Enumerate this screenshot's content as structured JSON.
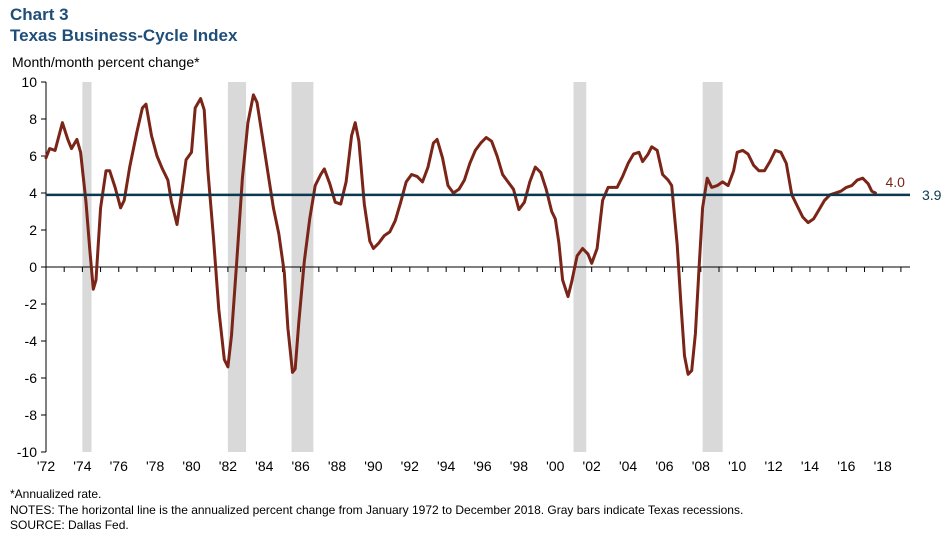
{
  "header": {
    "chart_number": "Chart 3",
    "title": "Texas Business-Cycle Index",
    "ylabel": "Month/month  percent change*"
  },
  "footnotes": {
    "annualized": "*Annualized rate.",
    "notes": "NOTES: The horizontal line is the annualized percent change from January 1972 to December 2018. Gray bars indicate Texas recessions.",
    "source": "SOURCE: Dallas Fed."
  },
  "colors": {
    "series": "#7b2418",
    "reference_line": "#0b3a4e",
    "recession_bars": "#d9d9d9",
    "title": "#1f4e79"
  },
  "chart_data": {
    "type": "line",
    "title": "Texas Business-Cycle Index",
    "ylabel": "Month/month  percent change*",
    "xlim": [
      1972,
      2019.5
    ],
    "ylim": [
      -10,
      10
    ],
    "yticks": [
      -10,
      -8,
      -6,
      -4,
      -2,
      0,
      2,
      4,
      6,
      8,
      10
    ],
    "xticks": [
      {
        "x": 1972,
        "label": "'72"
      },
      {
        "x": 1974,
        "label": "'74"
      },
      {
        "x": 1976,
        "label": "'76"
      },
      {
        "x": 1978,
        "label": "'78"
      },
      {
        "x": 1980,
        "label": "'80"
      },
      {
        "x": 1982,
        "label": "'82"
      },
      {
        "x": 1984,
        "label": "'84"
      },
      {
        "x": 1986,
        "label": "'86"
      },
      {
        "x": 1988,
        "label": "'88"
      },
      {
        "x": 1990,
        "label": "'90"
      },
      {
        "x": 1992,
        "label": "'92"
      },
      {
        "x": 1994,
        "label": "'94"
      },
      {
        "x": 1996,
        "label": "'96"
      },
      {
        "x": 1998,
        "label": "'98"
      },
      {
        "x": 2000,
        "label": "'00"
      },
      {
        "x": 2002,
        "label": "'02"
      },
      {
        "x": 2004,
        "label": "'04"
      },
      {
        "x": 2006,
        "label": "'06"
      },
      {
        "x": 2008,
        "label": "'08"
      },
      {
        "x": 2010,
        "label": "'10"
      },
      {
        "x": 2012,
        "label": "'12"
      },
      {
        "x": 2014,
        "label": "'14"
      },
      {
        "x": 2016,
        "label": "'16"
      },
      {
        "x": 2018,
        "label": "'18"
      }
    ],
    "recessions": [
      [
        1974.0,
        1974.5
      ],
      [
        1982.0,
        1983.0
      ],
      [
        1985.5,
        1986.7
      ],
      [
        2001.0,
        2001.7
      ],
      [
        2008.1,
        2009.2
      ]
    ],
    "reference_line": {
      "value": 3.9,
      "label": "3.9"
    },
    "end_label": {
      "value": 4.0,
      "label": "4.0"
    },
    "grid": false,
    "series": [
      {
        "points": [
          [
            1972.0,
            5.9
          ],
          [
            1972.2,
            6.4
          ],
          [
            1972.5,
            6.3
          ],
          [
            1972.9,
            7.8
          ],
          [
            1973.2,
            6.9
          ],
          [
            1973.4,
            6.4
          ],
          [
            1973.7,
            6.9
          ],
          [
            1973.9,
            6.2
          ],
          [
            1974.2,
            3.5
          ],
          [
            1974.4,
            1.0
          ],
          [
            1974.6,
            -1.2
          ],
          [
            1974.75,
            -0.7
          ],
          [
            1975.0,
            3.2
          ],
          [
            1975.3,
            5.2
          ],
          [
            1975.5,
            5.2
          ],
          [
            1975.8,
            4.3
          ],
          [
            1976.1,
            3.2
          ],
          [
            1976.3,
            3.6
          ],
          [
            1976.6,
            5.4
          ],
          [
            1977.0,
            7.3
          ],
          [
            1977.3,
            8.6
          ],
          [
            1977.5,
            8.8
          ],
          [
            1977.8,
            7.1
          ],
          [
            1978.1,
            6.0
          ],
          [
            1978.4,
            5.3
          ],
          [
            1978.7,
            4.7
          ],
          [
            1978.9,
            3.5
          ],
          [
            1979.2,
            2.3
          ],
          [
            1979.5,
            4.3
          ],
          [
            1979.7,
            5.8
          ],
          [
            1980.0,
            6.2
          ],
          [
            1980.2,
            8.6
          ],
          [
            1980.5,
            9.1
          ],
          [
            1980.7,
            8.5
          ],
          [
            1980.9,
            5.2
          ],
          [
            1981.2,
            1.7
          ],
          [
            1981.5,
            -2.3
          ],
          [
            1981.8,
            -5.0
          ],
          [
            1982.0,
            -5.4
          ],
          [
            1982.2,
            -3.7
          ],
          [
            1982.5,
            0.5
          ],
          [
            1982.8,
            4.8
          ],
          [
            1983.1,
            7.8
          ],
          [
            1983.4,
            9.3
          ],
          [
            1983.6,
            8.9
          ],
          [
            1983.9,
            7.0
          ],
          [
            1984.2,
            5.1
          ],
          [
            1984.5,
            3.2
          ],
          [
            1984.8,
            1.8
          ],
          [
            1985.1,
            -0.3
          ],
          [
            1985.3,
            -3.3
          ],
          [
            1985.55,
            -5.7
          ],
          [
            1985.7,
            -5.5
          ],
          [
            1985.9,
            -3.0
          ],
          [
            1986.2,
            0.3
          ],
          [
            1986.5,
            2.6
          ],
          [
            1986.8,
            4.4
          ],
          [
            1987.1,
            5.0
          ],
          [
            1987.3,
            5.3
          ],
          [
            1987.6,
            4.5
          ],
          [
            1987.9,
            3.5
          ],
          [
            1988.2,
            3.4
          ],
          [
            1988.5,
            4.6
          ],
          [
            1988.8,
            7.1
          ],
          [
            1989.0,
            7.8
          ],
          [
            1989.2,
            6.8
          ],
          [
            1989.5,
            3.4
          ],
          [
            1989.8,
            1.4
          ],
          [
            1990.0,
            1.0
          ],
          [
            1990.3,
            1.3
          ],
          [
            1990.6,
            1.7
          ],
          [
            1990.9,
            1.9
          ],
          [
            1991.2,
            2.5
          ],
          [
            1991.5,
            3.5
          ],
          [
            1991.8,
            4.6
          ],
          [
            1992.1,
            5.0
          ],
          [
            1992.4,
            4.9
          ],
          [
            1992.7,
            4.6
          ],
          [
            1993.0,
            5.4
          ],
          [
            1993.3,
            6.7
          ],
          [
            1993.5,
            6.9
          ],
          [
            1993.8,
            5.9
          ],
          [
            1994.1,
            4.4
          ],
          [
            1994.4,
            4.0
          ],
          [
            1994.7,
            4.2
          ],
          [
            1995.0,
            4.7
          ],
          [
            1995.3,
            5.6
          ],
          [
            1995.6,
            6.3
          ],
          [
            1995.9,
            6.7
          ],
          [
            1996.2,
            7.0
          ],
          [
            1996.5,
            6.8
          ],
          [
            1996.8,
            6.0
          ],
          [
            1997.1,
            5.0
          ],
          [
            1997.4,
            4.6
          ],
          [
            1997.7,
            4.2
          ],
          [
            1998.0,
            3.1
          ],
          [
            1998.3,
            3.5
          ],
          [
            1998.6,
            4.6
          ],
          [
            1998.9,
            5.4
          ],
          [
            1999.2,
            5.1
          ],
          [
            1999.5,
            4.2
          ],
          [
            1999.8,
            3.0
          ],
          [
            2000.0,
            2.6
          ],
          [
            2000.2,
            1.3
          ],
          [
            2000.4,
            -0.7
          ],
          [
            2000.7,
            -1.6
          ],
          [
            2000.9,
            -0.8
          ],
          [
            2001.2,
            0.6
          ],
          [
            2001.5,
            1.0
          ],
          [
            2001.8,
            0.7
          ],
          [
            2002.0,
            0.2
          ],
          [
            2002.3,
            1.0
          ],
          [
            2002.6,
            3.6
          ],
          [
            2002.9,
            4.3
          ],
          [
            2003.2,
            4.3
          ],
          [
            2003.4,
            4.3
          ],
          [
            2003.7,
            4.9
          ],
          [
            2004.0,
            5.6
          ],
          [
            2004.3,
            6.1
          ],
          [
            2004.6,
            6.2
          ],
          [
            2004.8,
            5.7
          ],
          [
            2005.1,
            6.1
          ],
          [
            2005.3,
            6.5
          ],
          [
            2005.6,
            6.3
          ],
          [
            2005.9,
            5.0
          ],
          [
            2006.2,
            4.7
          ],
          [
            2006.4,
            4.4
          ],
          [
            2006.7,
            1.2
          ],
          [
            2006.9,
            -1.9
          ],
          [
            2007.1,
            -4.8
          ],
          [
            2007.3,
            -5.8
          ],
          [
            2007.5,
            -5.6
          ],
          [
            2007.7,
            -3.6
          ],
          [
            2007.9,
            -0.1
          ],
          [
            2008.1,
            3.2
          ],
          [
            2008.35,
            4.8
          ],
          [
            2008.6,
            4.3
          ],
          [
            2008.9,
            4.4
          ],
          [
            2009.2,
            4.6
          ],
          [
            2009.5,
            4.4
          ],
          [
            2009.8,
            5.2
          ],
          [
            2010.0,
            6.2
          ],
          [
            2010.3,
            6.3
          ],
          [
            2010.6,
            6.1
          ],
          [
            2010.9,
            5.5
          ],
          [
            2011.2,
            5.2
          ],
          [
            2011.5,
            5.2
          ],
          [
            2011.8,
            5.7
          ],
          [
            2012.1,
            6.3
          ],
          [
            2012.4,
            6.2
          ],
          [
            2012.7,
            5.6
          ],
          [
            2013.0,
            3.9
          ],
          [
            2013.3,
            3.3
          ],
          [
            2013.6,
            2.7
          ],
          [
            2013.9,
            2.4
          ],
          [
            2014.2,
            2.6
          ],
          [
            2014.5,
            3.1
          ],
          [
            2014.8,
            3.6
          ],
          [
            2015.1,
            3.9
          ],
          [
            2015.4,
            4.0
          ],
          [
            2015.7,
            4.1
          ],
          [
            2016.0,
            4.3
          ],
          [
            2016.3,
            4.4
          ],
          [
            2016.6,
            4.7
          ],
          [
            2016.9,
            4.8
          ],
          [
            2017.2,
            4.5
          ],
          [
            2017.4,
            4.1
          ],
          [
            2017.6,
            4.0
          ]
        ]
      }
    ]
  }
}
